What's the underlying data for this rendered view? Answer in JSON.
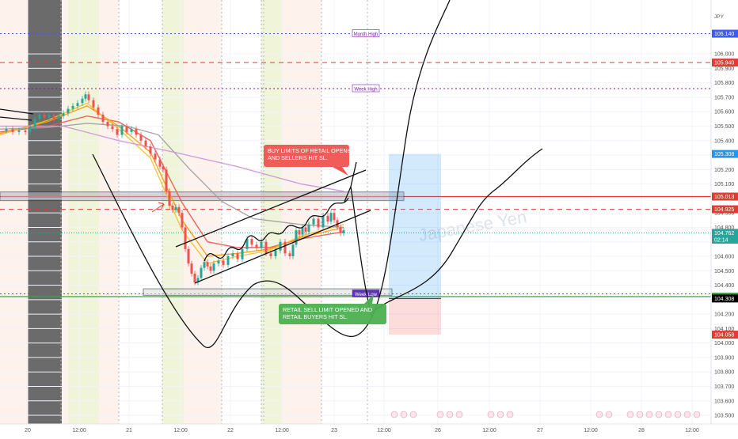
{
  "chart_data": {
    "type": "line",
    "symbol_fragment": "JPY",
    "watermark": "Japanese Yen",
    "ylim": [
      103.44,
      106.34
    ],
    "y_ticks": [
      106.0,
      105.9,
      105.8,
      105.7,
      105.6,
      105.5,
      105.4,
      105.3,
      105.2,
      105.1,
      105.0,
      104.9,
      104.8,
      104.7,
      104.6,
      104.5,
      104.4,
      104.3,
      104.2,
      104.1,
      104.0,
      103.9,
      103.8,
      103.7,
      103.6,
      103.5
    ],
    "y_tick_labels": [
      "106.000",
      "105.900",
      "105.800",
      "105.700",
      "105.600",
      "105.500",
      "105.400",
      "105.300",
      "105.200",
      "105.100",
      "105.000",
      "104.900",
      "104.800",
      "104.700",
      "104.600",
      "104.500",
      "104.400",
      "104.300",
      "104.200",
      "104.100",
      "104.000",
      "103.900",
      "103.800",
      "103.700",
      "103.600",
      "103.500"
    ],
    "x_range": [
      0,
      932
    ],
    "x_ticks": [
      {
        "x": 35,
        "label": "20"
      },
      {
        "x": 100,
        "label": "12:00"
      },
      {
        "x": 163,
        "label": "21"
      },
      {
        "x": 228,
        "label": "12:00"
      },
      {
        "x": 291,
        "label": "22"
      },
      {
        "x": 356,
        "label": "12:00"
      },
      {
        "x": 422,
        "label": "23"
      },
      {
        "x": 485,
        "label": "12:00"
      },
      {
        "x": 553,
        "label": "26"
      },
      {
        "x": 618,
        "label": "12:00"
      },
      {
        "x": 682,
        "label": "27"
      },
      {
        "x": 746,
        "label": "12:00"
      },
      {
        "x": 810,
        "label": "28"
      },
      {
        "x": 874,
        "label": "12:00"
      }
    ],
    "price_labels": [
      {
        "id": "month-high",
        "value": 106.14,
        "text": "106.140",
        "color": "#3d5afe"
      },
      {
        "id": "red-dashed-top",
        "value": 105.94,
        "text": "105.940",
        "color": "#e53935"
      },
      {
        "id": "target-zone-top",
        "value": 105.308,
        "text": "105.308",
        "color": "#2196f3"
      },
      {
        "id": "red-solid",
        "value": 105.013,
        "text": "105.013",
        "color": "#e53935"
      },
      {
        "id": "red-dashed-mid",
        "value": 104.925,
        "text": "104.925",
        "color": "#e53935"
      },
      {
        "id": "last-price",
        "value": 104.762,
        "text": "104.762",
        "color": "#26a69a"
      },
      {
        "id": "countdown",
        "value": 104.715,
        "text": "02:14",
        "color": "#26a69a"
      },
      {
        "id": "green-line",
        "value": 104.321,
        "text": "104.321",
        "color": "#43a047"
      },
      {
        "id": "entry",
        "value": 104.308,
        "text": "104.308",
        "color": "#000000"
      },
      {
        "id": "stop-zone-bottom",
        "value": 104.058,
        "text": "104.058",
        "color": "#e53935"
      }
    ],
    "level_tags": [
      {
        "text": "Month High",
        "value": 106.14,
        "x": 445
      },
      {
        "text": "Week High",
        "value": 105.76,
        "x": 445
      },
      {
        "text": "Week Low",
        "value": 104.34,
        "x": 445
      }
    ],
    "annotations": [
      {
        "text": "BUY LIMITS OF RETAIL OPENED AND SELLERS HIT SL.",
        "lines": [
          "BUY LIMITS OF RETAIL OPENED",
          "AND SELLERS HIT SL."
        ],
        "color": "#ef5350"
      },
      {
        "text": "RETAIL SELL LIMIT OPENED AND RETAIL BUYERS HIT SL.",
        "lines": [
          "RETAIL SELL LIMIT OPENED AND",
          "RETAIL BUYERS HIT SL."
        ],
        "color": "#4caf50"
      }
    ],
    "price_series": [
      [
        0,
        105.47
      ],
      [
        8,
        105.48
      ],
      [
        16,
        105.46
      ],
      [
        24,
        105.47
      ],
      [
        32,
        105.46
      ],
      [
        38,
        105.49
      ],
      [
        44,
        105.55
      ],
      [
        50,
        105.58
      ],
      [
        56,
        105.56
      ],
      [
        62,
        105.58
      ],
      [
        68,
        105.55
      ],
      [
        74,
        105.57
      ],
      [
        80,
        105.59
      ],
      [
        86,
        105.62
      ],
      [
        92,
        105.64
      ],
      [
        98,
        105.66
      ],
      [
        104,
        105.69
      ],
      [
        108,
        105.72
      ],
      [
        112,
        105.68
      ],
      [
        118,
        105.63
      ],
      [
        124,
        105.58
      ],
      [
        130,
        105.53
      ],
      [
        136,
        105.5
      ],
      [
        142,
        105.48
      ],
      [
        148,
        105.44
      ],
      [
        154,
        105.5
      ],
      [
        160,
        105.46
      ],
      [
        166,
        105.48
      ],
      [
        172,
        105.44
      ],
      [
        178,
        105.4
      ],
      [
        184,
        105.36
      ],
      [
        190,
        105.31
      ],
      [
        196,
        105.27
      ],
      [
        202,
        105.22
      ],
      [
        206,
        105.2
      ],
      [
        210,
        105.05
      ],
      [
        214,
        104.95
      ],
      [
        218,
        104.92
      ],
      [
        222,
        104.94
      ],
      [
        226,
        104.9
      ],
      [
        230,
        104.8
      ],
      [
        234,
        104.65
      ],
      [
        238,
        104.55
      ],
      [
        242,
        104.48
      ],
      [
        246,
        104.42
      ],
      [
        250,
        104.45
      ],
      [
        254,
        104.52
      ],
      [
        258,
        104.56
      ],
      [
        262,
        104.53
      ],
      [
        266,
        104.5
      ],
      [
        270,
        104.55
      ],
      [
        276,
        104.57
      ],
      [
        282,
        104.54
      ],
      [
        288,
        104.6
      ],
      [
        294,
        104.62
      ],
      [
        300,
        104.58
      ],
      [
        306,
        104.65
      ],
      [
        312,
        104.72
      ],
      [
        318,
        104.68
      ],
      [
        324,
        104.66
      ],
      [
        330,
        104.7
      ],
      [
        336,
        104.62
      ],
      [
        342,
        104.6
      ],
      [
        348,
        104.64
      ],
      [
        354,
        104.7
      ],
      [
        360,
        104.62
      ],
      [
        366,
        104.6
      ],
      [
        370,
        104.68
      ],
      [
        374,
        104.78
      ],
      [
        378,
        104.75
      ],
      [
        382,
        104.8
      ],
      [
        386,
        104.77
      ],
      [
        390,
        104.82
      ],
      [
        396,
        104.86
      ],
      [
        402,
        104.8
      ],
      [
        408,
        104.88
      ],
      [
        414,
        104.84
      ],
      [
        418,
        104.9
      ],
      [
        422,
        104.85
      ],
      [
        426,
        104.8
      ],
      [
        430,
        104.76
      ],
      [
        434,
        104.78
      ]
    ],
    "ema_series": [
      {
        "color": "#ef5350",
        "points": [
          [
            0,
            105.46
          ],
          [
            60,
            105.5
          ],
          [
            110,
            105.57
          ],
          [
            150,
            105.53
          ],
          [
            190,
            105.4
          ],
          [
            230,
            104.97
          ],
          [
            262,
            104.7
          ],
          [
            300,
            104.66
          ],
          [
            340,
            104.66
          ],
          [
            380,
            104.72
          ],
          [
            434,
            104.77
          ]
        ]
      },
      {
        "color": "#ff9800",
        "points": [
          [
            0,
            105.45
          ],
          [
            60,
            105.53
          ],
          [
            110,
            105.64
          ],
          [
            150,
            105.5
          ],
          [
            190,
            105.32
          ],
          [
            230,
            104.85
          ],
          [
            262,
            104.6
          ],
          [
            300,
            104.62
          ],
          [
            340,
            104.65
          ],
          [
            380,
            104.73
          ],
          [
            434,
            104.8
          ]
        ]
      },
      {
        "color": "#fbc02d",
        "points": [
          [
            0,
            105.44
          ],
          [
            60,
            105.54
          ],
          [
            110,
            105.66
          ],
          [
            150,
            105.48
          ],
          [
            190,
            105.28
          ],
          [
            230,
            104.78
          ],
          [
            262,
            104.55
          ],
          [
            300,
            104.6
          ],
          [
            340,
            104.64
          ],
          [
            380,
            104.74
          ],
          [
            434,
            104.82
          ]
        ]
      },
      {
        "color": "#9e9e9e",
        "points": [
          [
            0,
            105.48
          ],
          [
            60,
            105.49
          ],
          [
            110,
            105.52
          ],
          [
            160,
            105.5
          ],
          [
            200,
            105.44
          ],
          [
            240,
            105.2
          ],
          [
            280,
            104.98
          ],
          [
            320,
            104.86
          ],
          [
            380,
            104.82
          ],
          [
            434,
            104.8
          ]
        ]
      },
      {
        "color": "#ce93d8",
        "points": [
          [
            0,
            105.5
          ],
          [
            80,
            105.5
          ],
          [
            150,
            105.4
          ],
          [
            220,
            105.32
          ],
          [
            300,
            105.22
          ],
          [
            380,
            105.1
          ],
          [
            434,
            105.05
          ]
        ]
      }
    ]
  }
}
